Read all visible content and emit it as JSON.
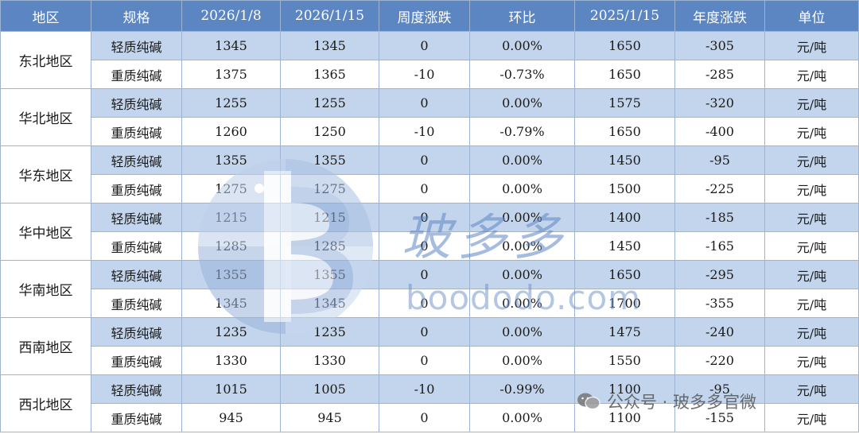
{
  "headers": [
    "地区",
    "规格",
    "2026/1/8",
    "2026/1/15",
    "周度涨跌",
    "环比",
    "2025/1/15",
    "年度涨跌",
    "单位"
  ],
  "regions": [
    {
      "name": "东北地区",
      "rows": [
        {
          "spec": "轻质纯碱",
          "v1": "1345",
          "v2": "1345",
          "weekly": "0",
          "ratio": "0.00%",
          "v3": "1650",
          "yearly": "-305",
          "unit": "元/吨"
        },
        {
          "spec": "重质纯碱",
          "v1": "1375",
          "v2": "1365",
          "weekly": "-10",
          "ratio": "-0.73%",
          "v3": "1650",
          "yearly": "-285",
          "unit": "元/吨"
        }
      ]
    },
    {
      "name": "华北地区",
      "rows": [
        {
          "spec": "轻质纯碱",
          "v1": "1255",
          "v2": "1255",
          "weekly": "0",
          "ratio": "0.00%",
          "v3": "1575",
          "yearly": "-320",
          "unit": "元/吨"
        },
        {
          "spec": "重质纯碱",
          "v1": "1260",
          "v2": "1250",
          "weekly": "-10",
          "ratio": "-0.79%",
          "v3": "1650",
          "yearly": "-400",
          "unit": "元/吨"
        }
      ]
    },
    {
      "name": "华东地区",
      "rows": [
        {
          "spec": "轻质纯碱",
          "v1": "1355",
          "v2": "1355",
          "weekly": "0",
          "ratio": "0.00%",
          "v3": "1450",
          "yearly": "-95",
          "unit": "元/吨"
        },
        {
          "spec": "重质纯碱",
          "v1": "1275",
          "v2": "1275",
          "weekly": "0",
          "ratio": "0.00%",
          "v3": "1500",
          "yearly": "-225",
          "unit": "元/吨"
        }
      ]
    },
    {
      "name": "华中地区",
      "rows": [
        {
          "spec": "轻质纯碱",
          "v1": "1215",
          "v2": "1215",
          "weekly": "0",
          "ratio": "0.00%",
          "v3": "1400",
          "yearly": "-185",
          "unit": "元/吨"
        },
        {
          "spec": "重质纯碱",
          "v1": "1285",
          "v2": "1285",
          "weekly": "0",
          "ratio": "0.00%",
          "v3": "1450",
          "yearly": "-165",
          "unit": "元/吨"
        }
      ]
    },
    {
      "name": "华南地区",
      "rows": [
        {
          "spec": "轻质纯碱",
          "v1": "1355",
          "v2": "1355",
          "weekly": "0",
          "ratio": "0.00%",
          "v3": "1650",
          "yearly": "-295",
          "unit": "元/吨"
        },
        {
          "spec": "重质纯碱",
          "v1": "1345",
          "v2": "1345",
          "weekly": "0",
          "ratio": "0.00%",
          "v3": "1700",
          "yearly": "-355",
          "unit": "元/吨"
        }
      ]
    },
    {
      "name": "西南地区",
      "rows": [
        {
          "spec": "轻质纯碱",
          "v1": "1235",
          "v2": "1235",
          "weekly": "0",
          "ratio": "0.00%",
          "v3": "1475",
          "yearly": "-240",
          "unit": "元/吨"
        },
        {
          "spec": "重质纯碱",
          "v1": "1330",
          "v2": "1330",
          "weekly": "0",
          "ratio": "0.00%",
          "v3": "1550",
          "yearly": "-220",
          "unit": "元/吨"
        }
      ]
    },
    {
      "name": "西北地区",
      "rows": [
        {
          "spec": "轻质纯碱",
          "v1": "1015",
          "v2": "1005",
          "weekly": "-10",
          "ratio": "-0.99%",
          "v3": "1100",
          "yearly": "-95",
          "unit": "元/吨"
        },
        {
          "spec": "重质纯碱",
          "v1": "945",
          "v2": "945",
          "weekly": "0",
          "ratio": "0.00%",
          "v3": "1100",
          "yearly": "-155",
          "unit": "元/吨"
        }
      ]
    }
  ],
  "watermark": {
    "brand_cn": "玻多多",
    "brand_en": "boododo.com",
    "wechat": "公众号 · 玻多多官微"
  },
  "colors": {
    "header_bg": "#5b86c1",
    "row_light": "#c3d5ed",
    "border": "#9cb3d2"
  }
}
